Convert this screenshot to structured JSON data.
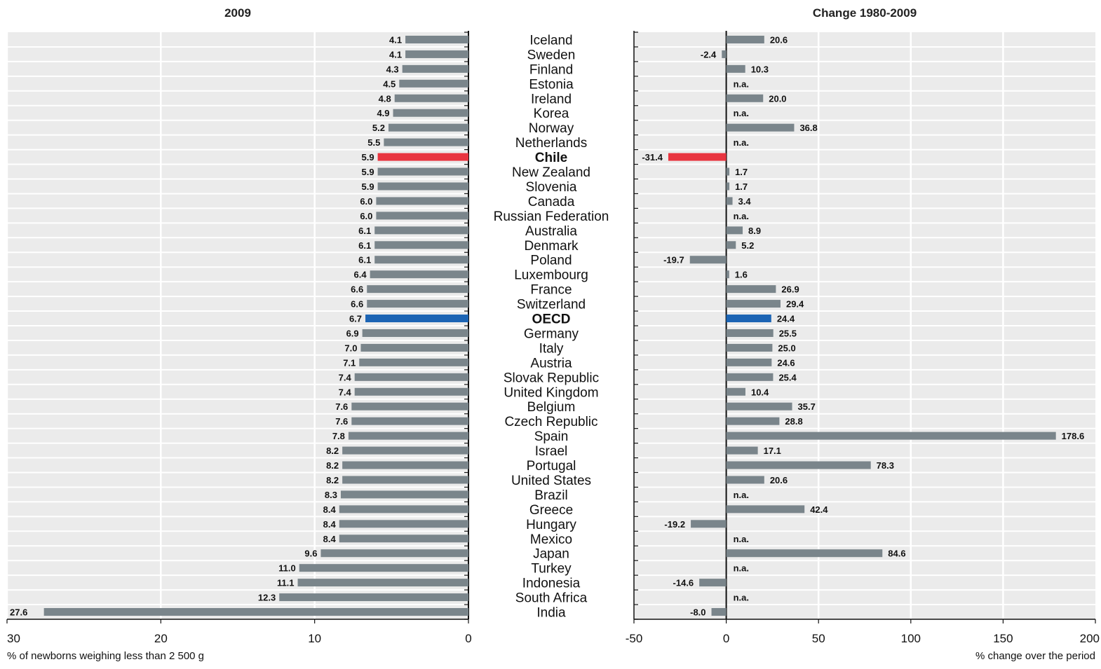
{
  "colors": {
    "bar": "#7a858b",
    "highlight_chile": "#e8343f",
    "highlight_oecd": "#1c64b4",
    "background_band": "#ebebeb"
  },
  "highlights": {
    "Chile": "#e8343f",
    "OECD": "#1c64b4"
  },
  "countries": [
    "Iceland",
    "Sweden",
    "Finland",
    "Estonia",
    "Ireland",
    "Korea",
    "Norway",
    "Netherlands",
    "Chile",
    "New Zealand",
    "Slovenia",
    "Canada",
    "Russian Federation",
    "Australia",
    "Denmark",
    "Poland",
    "Luxembourg",
    "France",
    "Switzerland",
    "OECD",
    "Germany",
    "Italy",
    "Austria",
    "Slovak Republic",
    "United Kingdom",
    "Belgium",
    "Czech Republic",
    "Spain",
    "Israel",
    "Portugal",
    "United States",
    "Brazil",
    "Greece",
    "Hungary",
    "Mexico",
    "Japan",
    "Turkey",
    "Indonesia",
    "South Africa",
    "India"
  ],
  "chart_data": [
    {
      "type": "bar",
      "orientation": "horizontal",
      "title": "2009",
      "xlabel": "% of newborns weighing less than 2 500 g",
      "xlim": [
        30,
        0
      ],
      "xticks": [
        "30",
        "20",
        "10",
        "0"
      ],
      "grid": true,
      "values": [
        4.1,
        4.1,
        4.3,
        4.5,
        4.8,
        4.9,
        5.2,
        5.5,
        5.9,
        5.9,
        5.9,
        6.0,
        6.0,
        6.1,
        6.1,
        6.1,
        6.4,
        6.6,
        6.6,
        6.7,
        6.9,
        7.0,
        7.1,
        7.4,
        7.4,
        7.6,
        7.6,
        7.8,
        8.2,
        8.2,
        8.2,
        8.3,
        8.4,
        8.4,
        8.4,
        9.6,
        11.0,
        11.1,
        12.3,
        27.6
      ],
      "labels": [
        "4.1",
        "4.1",
        "4.3",
        "4.5",
        "4.8",
        "4.9",
        "5.2",
        "5.5",
        "5.9",
        "5.9",
        "5.9",
        "6.0",
        "6.0",
        "6.1",
        "6.1",
        "6.1",
        "6.4",
        "6.6",
        "6.6",
        "6.7",
        "6.9",
        "7.0",
        "7.1",
        "7.4",
        "7.4",
        "7.6",
        "7.6",
        "7.8",
        "8.2",
        "8.2",
        "8.2",
        "8.3",
        "8.4",
        "8.4",
        "8.4",
        "9.6",
        "11.0",
        "11.1",
        "12.3",
        "27.6"
      ]
    },
    {
      "type": "bar",
      "orientation": "horizontal",
      "title": "Change 1980-2009",
      "xlabel": "% change over the period",
      "xlim": [
        -50,
        200
      ],
      "xticks": [
        "-50",
        "0",
        "50",
        "100",
        "150",
        "200"
      ],
      "grid": true,
      "values": [
        20.6,
        -2.4,
        10.3,
        null,
        20.0,
        null,
        36.8,
        null,
        -31.4,
        1.7,
        1.7,
        3.4,
        null,
        8.9,
        5.2,
        -19.7,
        1.6,
        26.9,
        29.4,
        24.4,
        25.5,
        25.0,
        24.6,
        25.4,
        10.4,
        35.7,
        28.8,
        178.6,
        17.1,
        78.3,
        20.6,
        null,
        42.4,
        -19.2,
        null,
        84.6,
        null,
        -14.6,
        null,
        -8.0
      ],
      "labels": [
        "20.6",
        "-2.4",
        "10.3",
        "n.a.",
        "20.0",
        "n.a.",
        "36.8",
        "n.a.",
        "-31.4",
        "1.7",
        "1.7",
        "3.4",
        "n.a.",
        "8.9",
        "5.2",
        "-19.7",
        "1.6",
        "26.9",
        "29.4",
        "24.4",
        "25.5",
        "25.0",
        "24.6",
        "25.4",
        "10.4",
        "35.7",
        "28.8",
        "178.6",
        "17.1",
        "78.3",
        "20.6",
        "n.a.",
        "42.4",
        "-19.2",
        "n.a.",
        "84.6",
        "n.a.",
        "-14.6",
        "n.a.",
        "-8.0"
      ]
    }
  ]
}
